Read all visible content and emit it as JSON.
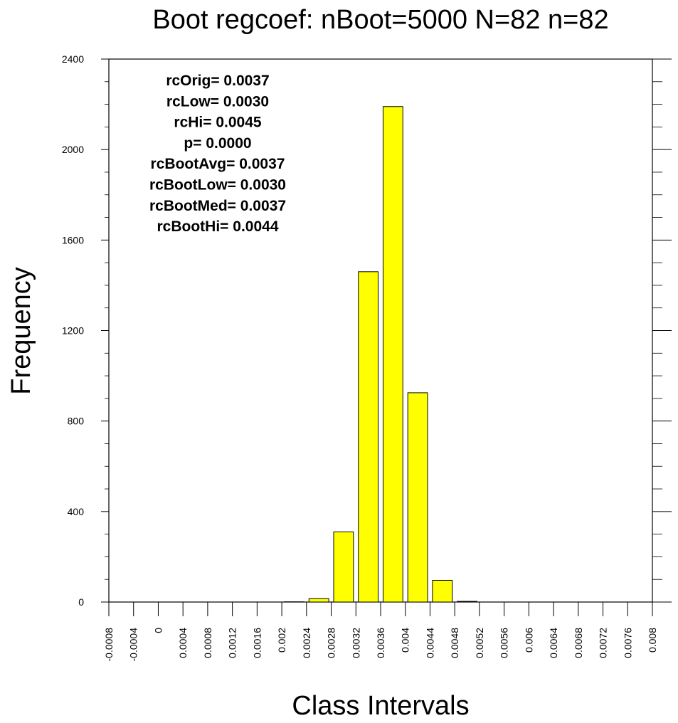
{
  "chart_data": {
    "type": "bar",
    "title": "Boot regcoef: nBoot=5000 N=82 n=82",
    "xlabel": "Class Intervals",
    "ylabel": "Frequency",
    "ylim": [
      0,
      2400
    ],
    "xlim": [
      -0.0008,
      0.008
    ],
    "grid": false,
    "bar_color": "#ffff00",
    "bar_edge_color": "#000000",
    "y_ticks": [
      "0",
      "400",
      "800",
      "1200",
      "1600",
      "2000",
      "2400"
    ],
    "x_ticks": [
      "-0.0008",
      "-0.0004",
      "0",
      "0.0004",
      "0.0008",
      "0.0012",
      "0.0016",
      "0.002",
      "0.0024",
      "0.0028",
      "0.0032",
      "0.0036",
      "0.004",
      "0.0044",
      "0.0048",
      "0.0052",
      "0.0056",
      "0.006",
      "0.0064",
      "0.0068",
      "0.0072",
      "0.0076",
      "0.008"
    ],
    "bin_width": 0.0004,
    "bins": [
      {
        "start": -0.0008,
        "value": 0
      },
      {
        "start": -0.0004,
        "value": 0
      },
      {
        "start": 0.0,
        "value": 0
      },
      {
        "start": 0.0004,
        "value": 0
      },
      {
        "start": 0.0008,
        "value": 0
      },
      {
        "start": 0.0012,
        "value": 0
      },
      {
        "start": 0.0016,
        "value": 0
      },
      {
        "start": 0.002,
        "value": 1
      },
      {
        "start": 0.0024,
        "value": 15
      },
      {
        "start": 0.0028,
        "value": 310
      },
      {
        "start": 0.0032,
        "value": 1460
      },
      {
        "start": 0.0036,
        "value": 2190
      },
      {
        "start": 0.004,
        "value": 925
      },
      {
        "start": 0.0044,
        "value": 96
      },
      {
        "start": 0.0048,
        "value": 3
      },
      {
        "start": 0.0052,
        "value": 0
      },
      {
        "start": 0.0056,
        "value": 0
      },
      {
        "start": 0.006,
        "value": 0
      },
      {
        "start": 0.0064,
        "value": 0
      },
      {
        "start": 0.0068,
        "value": 0
      },
      {
        "start": 0.0072,
        "value": 0
      },
      {
        "start": 0.0076,
        "value": 0
      }
    ],
    "annotations": [
      "rcOrig= 0.0037",
      "rcLow= 0.0030",
      "rcHi= 0.0045",
      "p= 0.0000",
      "rcBootAvg= 0.0037",
      "rcBootLow= 0.0030",
      "rcBootMed= 0.0037",
      "rcBootHi= 0.0044"
    ]
  }
}
